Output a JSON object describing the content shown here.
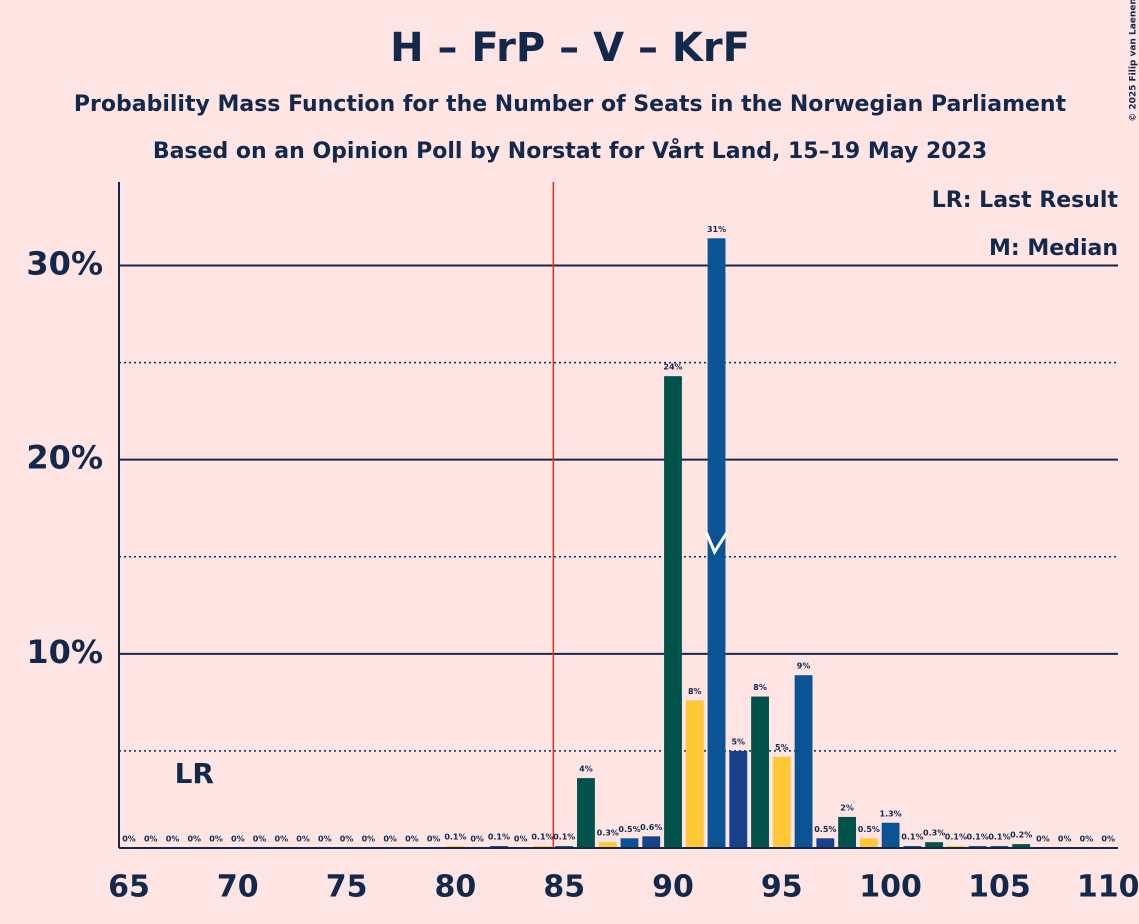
{
  "chart_data": {
    "type": "bar",
    "title": "H – FrP – V – KrF",
    "subtitle": "Probability Mass Function for the Number of Seats in the Norwegian Parliament",
    "subtitle2": "Based on an Opinion Poll by Norstat for Vårt Land, 15–19 May 2023",
    "legend": [
      "LR: Last Result",
      "M: Median"
    ],
    "last_result_label": "LR",
    "copyright": "© 2025 Filip van Laenen",
    "x": [
      65,
      66,
      67,
      68,
      69,
      70,
      71,
      72,
      73,
      74,
      75,
      76,
      77,
      78,
      79,
      80,
      81,
      82,
      83,
      84,
      85,
      86,
      87,
      88,
      89,
      90,
      91,
      92,
      93,
      94,
      95,
      96,
      97,
      98,
      99,
      100,
      101,
      102,
      103,
      104,
      105,
      106,
      107,
      108,
      109,
      110
    ],
    "values": [
      0,
      0,
      0,
      0,
      0,
      0,
      0,
      0,
      0,
      0,
      0,
      0,
      0,
      0,
      0,
      0.1,
      0,
      0.1,
      0,
      0.1,
      0.1,
      3.6,
      0.3,
      0.5,
      0.6,
      24.3,
      7.6,
      31.4,
      5.0,
      7.8,
      4.7,
      8.9,
      0.5,
      1.6,
      0.5,
      1.3,
      0.1,
      0.3,
      0.1,
      0.1,
      0.1,
      0.2,
      0,
      0,
      0,
      0
    ],
    "value_labels": [
      "0%",
      "0%",
      "0%",
      "0%",
      "0%",
      "0%",
      "0%",
      "0%",
      "0%",
      "0%",
      "0%",
      "0%",
      "0%",
      "0%",
      "0%",
      "0.1%",
      "0%",
      "0.1%",
      "0%",
      "0.1%",
      "0.1%",
      "4%",
      "0.3%",
      "0.5%",
      "0.6%",
      "24%",
      "8%",
      "31%",
      "5%",
      "8%",
      "5%",
      "9%",
      "0.5%",
      "2%",
      "0.5%",
      "1.3%",
      "0.1%",
      "0.3%",
      "0.1%",
      "0.1%",
      "0.1%",
      "0.2%",
      "0%",
      "0%",
      "0%",
      "0%"
    ],
    "colors": [
      "#0a5496",
      "#17418a",
      "#00524a",
      "#ffc837",
      "#0a5496",
      "#17418a",
      "#00524a",
      "#ffc837",
      "#0a5496",
      "#17418a",
      "#00524a",
      "#ffc837",
      "#0a5496",
      "#17418a",
      "#00524a",
      "#ffc837",
      "#0a5496",
      "#17418a",
      "#00524a",
      "#ffc837",
      "#0a5496",
      "#00524a",
      "#ffc837",
      "#0a5496",
      "#17418a",
      "#00524a",
      "#ffc837",
      "#0a5496",
      "#17418a",
      "#00524a",
      "#ffc837",
      "#0a5496",
      "#17418a",
      "#00524a",
      "#ffc837",
      "#0a5496",
      "#17418a",
      "#00524a",
      "#ffc837",
      "#0a5496",
      "#17418a",
      "#00524a",
      "#ffc837",
      "#0a5496",
      "#17418a",
      "#00524a"
    ],
    "xlim": [
      64.54,
      110.45
    ],
    "ylim": [
      0,
      34.3
    ],
    "xticks": [
      65,
      70,
      75,
      80,
      85,
      90,
      95,
      100,
      105,
      110
    ],
    "yticks": [
      {
        "value": 10,
        "label": "10%"
      },
      {
        "value": 20,
        "label": "20%"
      },
      {
        "value": 30,
        "label": "30%"
      }
    ],
    "yminor": [
      5,
      15,
      25
    ],
    "majority_line": 84.5,
    "majority_color": "#e0301e",
    "last_result": 68,
    "median": 92,
    "grid": true
  }
}
